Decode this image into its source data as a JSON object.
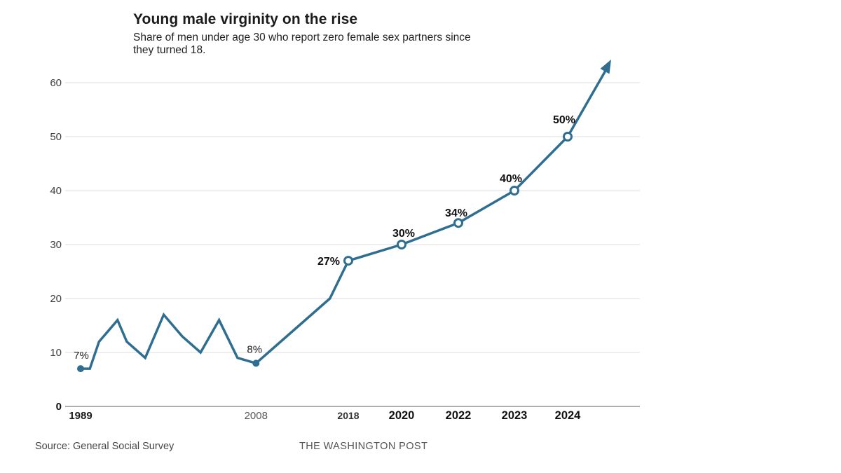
{
  "chart": {
    "title": "Young male virginity on the rise",
    "subtitle": "Share of men under age 30 who report zero female sex partners since\nthey turned 18.",
    "source": "Source: General Social Survey",
    "attribution": "THE WASHINGTON POST"
  },
  "chart_data": {
    "type": "line",
    "title": "Young male virginity on the rise",
    "subtitle": "Share of men under age 30 who report zero female sex partners since they turned 18.",
    "xlabel": "",
    "ylabel": "",
    "ylim": [
      0,
      65
    ],
    "y_ticks": [
      0,
      10,
      20,
      30,
      40,
      50,
      60
    ],
    "grid": true,
    "legend": false,
    "colors": {
      "line": "#2f6e90",
      "grid": "#dcdcdc",
      "axis": "#7f7f7f",
      "marker_fill": "#ffffff"
    },
    "points": [
      {
        "year": 1989,
        "value": 7,
        "label": "7%",
        "marker": "filled",
        "label_bold": false
      },
      {
        "year": 1990,
        "value": 7,
        "label": null,
        "marker": "none"
      },
      {
        "year": 1991,
        "value": 12,
        "label": null,
        "marker": "none"
      },
      {
        "year": 1993,
        "value": 16,
        "label": null,
        "marker": "none"
      },
      {
        "year": 1994,
        "value": 12,
        "label": null,
        "marker": "none"
      },
      {
        "year": 1996,
        "value": 9,
        "label": null,
        "marker": "none"
      },
      {
        "year": 1998,
        "value": 17,
        "label": null,
        "marker": "none"
      },
      {
        "year": 2000,
        "value": 13,
        "label": null,
        "marker": "none"
      },
      {
        "year": 2002,
        "value": 10,
        "label": null,
        "marker": "none"
      },
      {
        "year": 2004,
        "value": 16,
        "label": null,
        "marker": "none"
      },
      {
        "year": 2006,
        "value": 9,
        "label": null,
        "marker": "none"
      },
      {
        "year": 2008,
        "value": 8,
        "label": "8%",
        "marker": "filled",
        "label_bold": false
      },
      {
        "year": 2016,
        "value": 20,
        "label": null,
        "marker": "none"
      },
      {
        "year": 2018,
        "value": 27,
        "label": "27%",
        "marker": "open",
        "label_bold": true
      },
      {
        "year": 2020,
        "value": 30,
        "label": "30%",
        "marker": "open",
        "label_bold": true
      },
      {
        "year": 2022,
        "value": 34,
        "label": "34%",
        "marker": "open",
        "label_bold": true
      },
      {
        "year": 2023,
        "value": 40,
        "label": "40%",
        "marker": "open",
        "label_bold": true
      },
      {
        "year": 2024,
        "value": 50,
        "label": "50%",
        "marker": "open",
        "label_bold": true
      }
    ],
    "x_ticks": [
      {
        "label": "1989",
        "year": 1989,
        "emphasis": "bold"
      },
      {
        "label": "2008",
        "year": 2008,
        "emphasis": "muted"
      },
      {
        "label": "2018",
        "year": 2018,
        "emphasis": "bold-small"
      },
      {
        "label": "2020",
        "year": 2020,
        "emphasis": "bold-large"
      },
      {
        "label": "2022",
        "year": 2022,
        "emphasis": "bold-large"
      },
      {
        "label": "2023",
        "year": 2023,
        "emphasis": "bold-large"
      },
      {
        "label": "2024",
        "year": 2024,
        "emphasis": "bold-large"
      }
    ],
    "trend_arrow": true
  }
}
